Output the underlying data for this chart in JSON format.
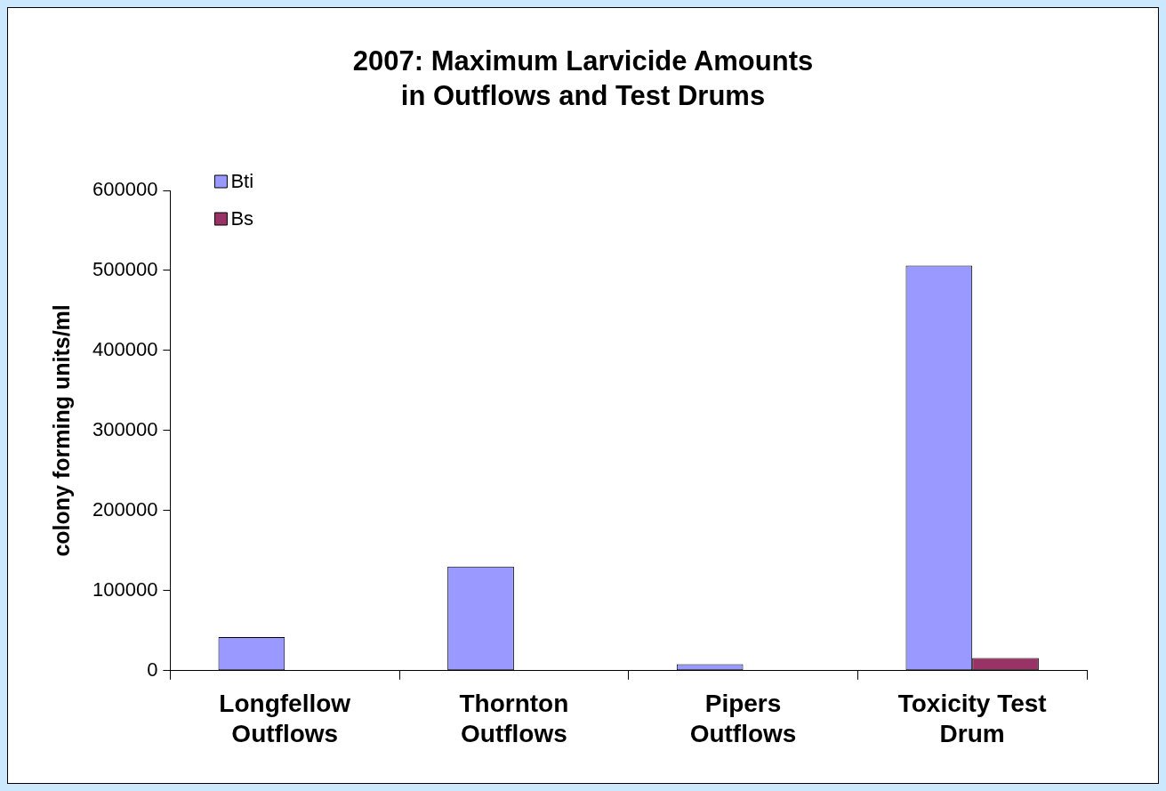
{
  "chart_data": {
    "type": "bar",
    "title": "2007: Maximum Larvicide Amounts\nin Outflows and Test Drums",
    "ylabel": "colony forming units/ml",
    "categories": [
      "Longfellow\nOutflows",
      "Thornton\nOutflows",
      "Pipers\nOutflows",
      "Toxicity Test\nDrum"
    ],
    "series": [
      {
        "name": "Bti",
        "color": "#9999ff",
        "values": [
          42000,
          130000,
          8000,
          506000
        ]
      },
      {
        "name": "Bs",
        "color": "#993366",
        "values": [
          0,
          0,
          0,
          16000
        ]
      }
    ],
    "ylim": [
      0,
      600000
    ],
    "yticks": [
      0,
      100000,
      200000,
      300000,
      400000,
      500000,
      600000
    ],
    "grid": false,
    "legend": "top left"
  }
}
